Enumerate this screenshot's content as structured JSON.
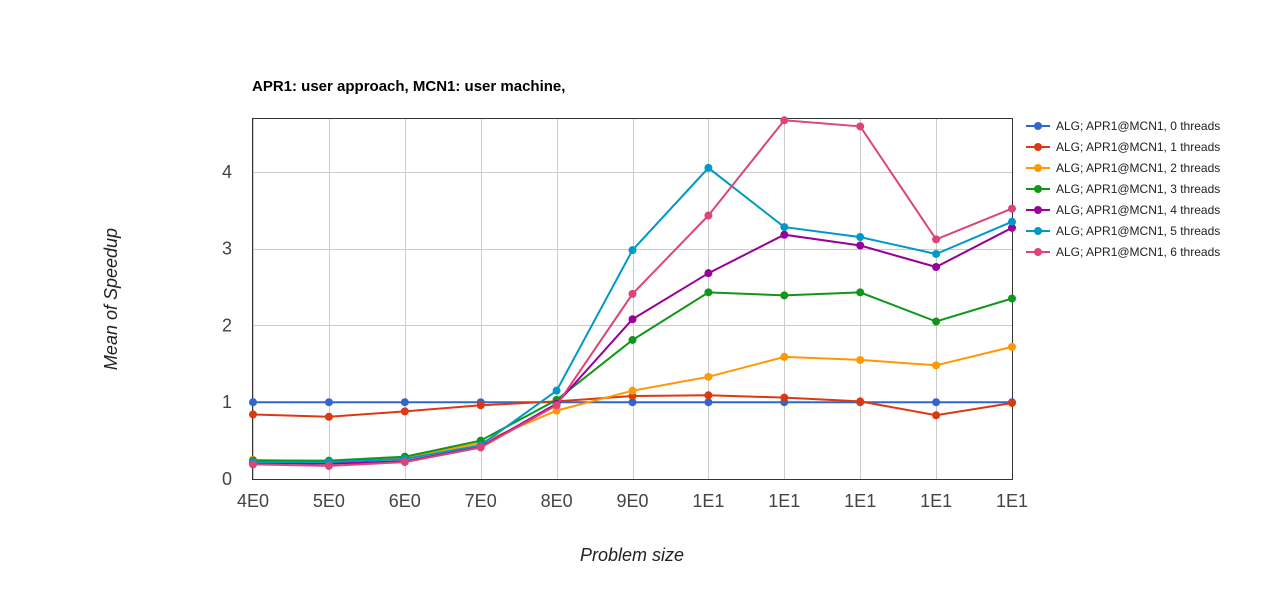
{
  "chart_data": {
    "type": "line",
    "title": "APR1: user approach, MCN1: user machine,",
    "xlabel": "Problem size",
    "ylabel": "Mean of Speedup",
    "categories": [
      "4E0",
      "5E0",
      "6E0",
      "7E0",
      "8E0",
      "9E0",
      "1E1",
      "1E1",
      "1E1",
      "1E1",
      "1E1"
    ],
    "ylim": [
      0,
      4.7
    ],
    "yticks": [
      0,
      1,
      2,
      3,
      4
    ],
    "grid": true,
    "legend_position": "right",
    "series": [
      {
        "name": "ALG; APR1@MCN1, 0 threads",
        "color": "#3366cc",
        "values": [
          1.0,
          1.0,
          1.0,
          1.0,
          1.0,
          1.0,
          1.0,
          1.0,
          1.0,
          1.0,
          1.0
        ]
      },
      {
        "name": "ALG; APR1@MCN1, 1 threads",
        "color": "#dc3912",
        "values": [
          0.84,
          0.81,
          0.88,
          0.96,
          1.01,
          1.08,
          1.09,
          1.06,
          1.01,
          0.83,
          0.99
        ]
      },
      {
        "name": "ALG; APR1@MCN1, 2 threads",
        "color": "#ff9900",
        "values": [
          0.25,
          0.23,
          0.28,
          0.47,
          0.89,
          1.15,
          1.33,
          1.59,
          1.55,
          1.48,
          1.72
        ]
      },
      {
        "name": "ALG; APR1@MCN1, 3 threads",
        "color": "#109618",
        "values": [
          0.24,
          0.24,
          0.29,
          0.5,
          1.03,
          1.81,
          2.43,
          2.39,
          2.43,
          2.05,
          2.35
        ]
      },
      {
        "name": "ALG; APR1@MCN1, 4 threads",
        "color": "#990099",
        "values": [
          0.21,
          0.2,
          0.23,
          0.42,
          0.98,
          2.08,
          2.68,
          3.18,
          3.04,
          2.76,
          3.27
        ]
      },
      {
        "name": "ALG; APR1@MCN1, 5 threads",
        "color": "#0099c6",
        "values": [
          0.22,
          0.22,
          0.26,
          0.44,
          1.15,
          2.98,
          4.05,
          3.28,
          3.15,
          2.93,
          3.35
        ]
      },
      {
        "name": "ALG; APR1@MCN1, 6 threads",
        "color": "#dd4477",
        "values": [
          0.19,
          0.17,
          0.22,
          0.41,
          0.96,
          2.41,
          3.43,
          4.67,
          4.59,
          3.12,
          3.52
        ]
      }
    ]
  }
}
